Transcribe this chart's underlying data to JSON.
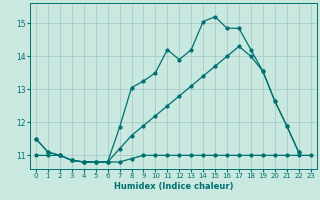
{
  "xlabel": "Humidex (Indice chaleur)",
  "bg_color": "#c8e8e0",
  "grid_color": "#a8ccc8",
  "line_color": "#007070",
  "line1_x": [
    0,
    1,
    2,
    3,
    4,
    5,
    6,
    7,
    8,
    9,
    10,
    11,
    12,
    13,
    14,
    15,
    16,
    17,
    18,
    19,
    20,
    21,
    22,
    23
  ],
  "line1_y": [
    11.5,
    11.1,
    11.0,
    10.85,
    10.8,
    10.8,
    10.8,
    11.85,
    13.05,
    13.25,
    13.5,
    14.2,
    13.9,
    14.2,
    15.05,
    15.2,
    14.85,
    14.85,
    14.2,
    13.55,
    12.65,
    11.9,
    11.1,
    null
  ],
  "line2_x": [
    0,
    1,
    2,
    3,
    4,
    5,
    6,
    7,
    8,
    9,
    10,
    11,
    12,
    13,
    14,
    15,
    16,
    17,
    18,
    19,
    20,
    21,
    22,
    23
  ],
  "line2_y": [
    11.5,
    11.1,
    11.0,
    10.85,
    10.8,
    10.8,
    10.8,
    11.2,
    11.6,
    11.9,
    12.2,
    12.5,
    12.8,
    13.1,
    13.4,
    13.7,
    14.0,
    14.3,
    14.0,
    13.55,
    12.65,
    11.9,
    11.1,
    null
  ],
  "line3_x": [
    0,
    1,
    2,
    3,
    4,
    5,
    6,
    7,
    8,
    9,
    10,
    11,
    12,
    13,
    14,
    15,
    16,
    17,
    18,
    19,
    20,
    21,
    22,
    23
  ],
  "line3_y": [
    11.0,
    11.0,
    11.0,
    10.85,
    10.8,
    10.8,
    10.8,
    10.8,
    10.9,
    11.0,
    11.0,
    11.0,
    11.0,
    11.0,
    11.0,
    11.0,
    11.0,
    11.0,
    11.0,
    11.0,
    11.0,
    11.0,
    11.0,
    11.0
  ],
  "ylim": [
    10.6,
    15.6
  ],
  "xlim": [
    -0.5,
    23.5
  ],
  "yticks": [
    11,
    12,
    13,
    14,
    15
  ],
  "xticks": [
    0,
    1,
    2,
    3,
    4,
    5,
    6,
    7,
    8,
    9,
    10,
    11,
    12,
    13,
    14,
    15,
    16,
    17,
    18,
    19,
    20,
    21,
    22,
    23
  ]
}
